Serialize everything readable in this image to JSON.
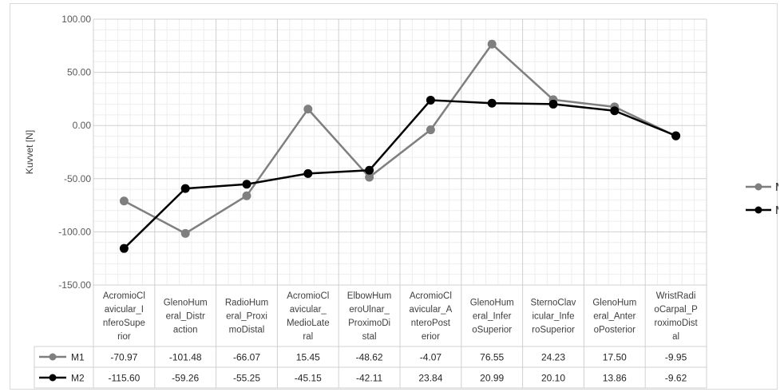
{
  "chart_data": {
    "type": "line",
    "title": "",
    "ylabel": "Kuvvet [N]",
    "xlabel": "",
    "ylim": [
      -150,
      100
    ],
    "y_ticks": [
      "100.00",
      "50.00",
      "0.00",
      "-50.00",
      "-100.00",
      "-150.00"
    ],
    "y_tick_values": [
      100,
      50,
      0,
      -50,
      -100,
      -150
    ],
    "grid": true,
    "legend_position": "right",
    "categories": [
      [
        "AcromioCl",
        "avicular_I",
        "nferoSupe",
        "rior"
      ],
      [
        "GlenoHum",
        "eral_Distr",
        "action"
      ],
      [
        "RadioHum",
        "eral_Proxi",
        "moDistal"
      ],
      [
        "AcromioCl",
        "avicular_",
        "MedioLate",
        "ral"
      ],
      [
        "ElbowHum",
        "eroUlnar_",
        "ProximoDi",
        "stal"
      ],
      [
        "AcromioCl",
        "avicular_A",
        "nteroPost",
        "erior"
      ],
      [
        "GlenoHum",
        "eral_Infer",
        "oSuperior"
      ],
      [
        "SternoClav",
        "icular_Infe",
        "roSuperior"
      ],
      [
        "GlenoHum",
        "eral_Anter",
        "oPosterior"
      ],
      [
        "WristRadi",
        "oCarpal_P",
        "roximoDist",
        "al"
      ]
    ],
    "series": [
      {
        "name": "M1",
        "color": "#7f7f7f",
        "values": [
          -70.97,
          -101.48,
          -66.07,
          15.45,
          -48.62,
          -4.07,
          76.55,
          24.23,
          17.5,
          -9.95
        ],
        "labels": [
          "-70.97",
          "-101.48",
          "-66.07",
          "15.45",
          "-48.62",
          "-4.07",
          "76.55",
          "24.23",
          "17.50",
          "-9.95"
        ]
      },
      {
        "name": "M2",
        "color": "#000000",
        "values": [
          -115.6,
          -59.26,
          -55.25,
          -45.15,
          -42.11,
          23.84,
          20.99,
          20.1,
          13.86,
          -9.62
        ],
        "labels": [
          "-115.60",
          "-59.26",
          "-55.25",
          "-45.15",
          "-42.11",
          "23.84",
          "20.99",
          "20.10",
          "13.86",
          "-9.62"
        ]
      }
    ]
  }
}
